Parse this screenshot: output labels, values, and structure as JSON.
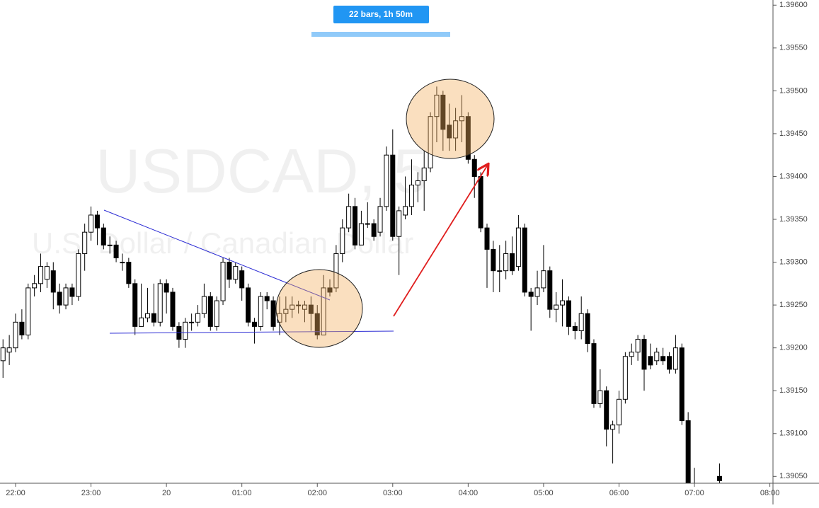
{
  "chart_data": {
    "type": "candlestick",
    "title": "USDCAD, 5",
    "subtitle": "U.S. Dollar / Canadian Dollar",
    "annotations": [
      "22 bars, 1h 50m"
    ],
    "x": [
      "21:50",
      "21:55",
      "22:00",
      "22:05",
      "22:10",
      "22:15",
      "22:20",
      "22:25",
      "22:30",
      "22:35",
      "22:40",
      "22:45",
      "22:50",
      "22:55",
      "23:00",
      "23:05",
      "23:10",
      "23:15",
      "23:20",
      "23:25",
      "23:30",
      "23:35",
      "23:40",
      "23:45",
      "23:50",
      "23:55",
      "00:00",
      "00:05",
      "00:10",
      "00:15",
      "00:20",
      "00:25",
      "00:30",
      "00:35",
      "00:40",
      "00:45",
      "00:50",
      "00:55",
      "01:00",
      "01:05",
      "01:10",
      "01:15",
      "01:20",
      "01:25",
      "01:30",
      "01:35",
      "01:40",
      "01:45",
      "01:50",
      "01:55",
      "02:00",
      "02:05",
      "02:10",
      "02:15",
      "02:20",
      "02:25",
      "02:30",
      "02:35",
      "02:40",
      "02:45",
      "02:50",
      "02:55",
      "03:00",
      "03:05",
      "03:10",
      "03:15",
      "03:20",
      "03:25",
      "03:30",
      "03:35",
      "03:40",
      "03:45",
      "03:50",
      "03:55",
      "04:00",
      "04:05",
      "04:10",
      "04:15",
      "04:20",
      "04:25",
      "04:30",
      "04:35",
      "04:40",
      "04:45",
      "04:50",
      "04:55",
      "05:00",
      "05:05",
      "05:10",
      "05:15",
      "05:20",
      "05:25",
      "05:30",
      "05:35",
      "05:40",
      "05:45",
      "05:50",
      "05:55",
      "06:00",
      "06:05",
      "06:10",
      "06:15",
      "06:20",
      "06:25",
      "06:30",
      "06:35",
      "06:40",
      "06:45",
      "06:50",
      "06:55",
      "07:00",
      "07:20"
    ],
    "open": [
      1.39185,
      1.39195,
      1.392,
      1.3923,
      1.39215,
      1.3927,
      1.39275,
      1.3928,
      1.3929,
      1.39265,
      1.3925,
      1.3927,
      1.3926,
      1.3931,
      1.39335,
      1.39355,
      1.3934,
      1.3932,
      1.3932,
      1.393,
      1.393,
      1.39275,
      1.39225,
      1.39235,
      1.3924,
      1.3923,
      1.39275,
      1.39265,
      1.39225,
      1.3921,
      1.3923,
      1.3923,
      1.3924,
      1.3926,
      1.39225,
      1.39255,
      1.393,
      1.3928,
      1.3929,
      1.3927,
      1.3923,
      1.39225,
      1.3926,
      1.39255,
      1.3923,
      1.3924,
      1.39245,
      1.3925,
      1.39245,
      1.3925,
      1.3924,
      1.39215,
      1.3927,
      1.3927,
      1.3931,
      1.3934,
      1.39365,
      1.3932,
      1.39345,
      1.39345,
      1.39335,
      1.39365,
      1.39425,
      1.3933,
      1.39355,
      1.39365,
      1.3939,
      1.39395,
      1.3941,
      1.3947,
      1.39495,
      1.3946,
      1.39445,
      1.39465,
      1.3947,
      1.3942,
      1.394,
      1.3934,
      1.39315,
      1.3929,
      1.3929,
      1.3931,
      1.39295,
      1.3934,
      1.39265,
      1.3926,
      1.3927,
      1.3929,
      1.39245,
      1.3925,
      1.39255,
      1.39225,
      1.3922,
      1.3924,
      1.39205,
      1.39135,
      1.3915,
      1.39105,
      1.3911,
      1.3914,
      1.3919,
      1.39195,
      1.3921,
      1.3919,
      1.39185,
      1.3919,
      1.3919,
      1.39175,
      1.392,
      1.39115,
      1.3904,
      1.3905
    ],
    "high": [
      1.3921,
      1.39215,
      1.3924,
      1.39245,
      1.39275,
      1.39285,
      1.3931,
      1.393,
      1.393,
      1.39275,
      1.39275,
      1.39275,
      1.39315,
      1.39345,
      1.39365,
      1.3936,
      1.39345,
      1.3933,
      1.39325,
      1.3931,
      1.39305,
      1.3928,
      1.39275,
      1.3927,
      1.39275,
      1.3928,
      1.3928,
      1.3927,
      1.3923,
      1.39235,
      1.3924,
      1.3925,
      1.39275,
      1.39265,
      1.3926,
      1.39305,
      1.39305,
      1.393,
      1.39295,
      1.39275,
      1.39235,
      1.39265,
      1.39265,
      1.3926,
      1.3926,
      1.3926,
      1.3926,
      1.39255,
      1.39255,
      1.3926,
      1.3925,
      1.39285,
      1.3928,
      1.3932,
      1.3935,
      1.3938,
      1.39375,
      1.3936,
      1.3937,
      1.3935,
      1.39375,
      1.39435,
      1.39455,
      1.39365,
      1.394,
      1.3942,
      1.39405,
      1.3943,
      1.39475,
      1.39505,
      1.395,
      1.39485,
      1.3948,
      1.39495,
      1.39475,
      1.39425,
      1.39405,
      1.39345,
      1.39325,
      1.3932,
      1.39325,
      1.3933,
      1.39355,
      1.39345,
      1.3927,
      1.3929,
      1.3932,
      1.39295,
      1.39265,
      1.3928,
      1.3926,
      1.3923,
      1.3926,
      1.39245,
      1.3921,
      1.39175,
      1.39155,
      1.39115,
      1.3915,
      1.39195,
      1.39205,
      1.39215,
      1.39215,
      1.39205,
      1.392,
      1.392,
      1.39195,
      1.39215,
      1.39205,
      1.39125,
      1.3906,
      1.39065
    ],
    "low": [
      1.39165,
      1.3918,
      1.39195,
      1.3921,
      1.3921,
      1.3926,
      1.39265,
      1.3927,
      1.39245,
      1.3924,
      1.39245,
      1.3925,
      1.39255,
      1.3929,
      1.39325,
      1.3932,
      1.39315,
      1.3931,
      1.393,
      1.3929,
      1.3927,
      1.39215,
      1.39225,
      1.3923,
      1.39225,
      1.39225,
      1.3924,
      1.3922,
      1.392,
      1.392,
      1.3922,
      1.39225,
      1.39235,
      1.3922,
      1.3922,
      1.3925,
      1.3927,
      1.39275,
      1.39255,
      1.39225,
      1.39205,
      1.3922,
      1.39245,
      1.3922,
      1.39215,
      1.3923,
      1.39235,
      1.3924,
      1.3923,
      1.3922,
      1.3921,
      1.39215,
      1.3926,
      1.39265,
      1.393,
      1.39335,
      1.39315,
      1.3932,
      1.3934,
      1.39325,
      1.3933,
      1.3936,
      1.39325,
      1.39285,
      1.3935,
      1.39355,
      1.3937,
      1.3936,
      1.39405,
      1.3944,
      1.3943,
      1.3943,
      1.3943,
      1.3944,
      1.39415,
      1.39375,
      1.39335,
      1.3927,
      1.39265,
      1.39265,
      1.3928,
      1.39285,
      1.3929,
      1.3926,
      1.3922,
      1.3925,
      1.39265,
      1.39235,
      1.3923,
      1.39225,
      1.39215,
      1.3921,
      1.3921,
      1.39195,
      1.3913,
      1.3913,
      1.39085,
      1.39065,
      1.391,
      1.39135,
      1.3918,
      1.39185,
      1.3915,
      1.39175,
      1.3918,
      1.3918,
      1.3917,
      1.3917,
      1.3911,
      1.3901,
      1.3902,
      1.3904
    ],
    "close": [
      1.392,
      1.392,
      1.3923,
      1.39215,
      1.3927,
      1.39275,
      1.39295,
      1.39295,
      1.39265,
      1.3925,
      1.3927,
      1.3926,
      1.3931,
      1.39335,
      1.39355,
      1.3934,
      1.3932,
      1.3932,
      1.39305,
      1.393,
      1.39275,
      1.39225,
      1.39235,
      1.3924,
      1.3923,
      1.39275,
      1.39265,
      1.39225,
      1.3921,
      1.3923,
      1.3923,
      1.3924,
      1.3926,
      1.39225,
      1.39255,
      1.393,
      1.3928,
      1.39295,
      1.3927,
      1.3923,
      1.39225,
      1.3926,
      1.39255,
      1.39225,
      1.3924,
      1.39245,
      1.3925,
      1.3925,
      1.3925,
      1.3924,
      1.39215,
      1.3927,
      1.39265,
      1.3931,
      1.3934,
      1.39365,
      1.3932,
      1.39345,
      1.39345,
      1.3933,
      1.39365,
      1.39425,
      1.3933,
      1.3936,
      1.39365,
      1.3939,
      1.39395,
      1.3941,
      1.3947,
      1.39495,
      1.39455,
      1.39445,
      1.39465,
      1.3947,
      1.3942,
      1.394,
      1.3934,
      1.39315,
      1.3929,
      1.3929,
      1.3931,
      1.3929,
      1.3934,
      1.39265,
      1.3926,
      1.3927,
      1.3929,
      1.39245,
      1.3925,
      1.39255,
      1.39225,
      1.3922,
      1.3924,
      1.39205,
      1.39135,
      1.3915,
      1.39105,
      1.3911,
      1.3914,
      1.3919,
      1.39195,
      1.3921,
      1.39175,
      1.3918,
      1.39195,
      1.39185,
      1.39175,
      1.392,
      1.39115,
      1.3902,
      1.39035,
      1.39045
    ],
    "up_color": "#ffffff",
    "down_color": "#000000",
    "ylim": [
      1.39042,
      1.39606
    ],
    "yticks": [
      {
        "value": 1.3905,
        "label": "1.39050"
      },
      {
        "value": 1.391,
        "label": "1.39100"
      },
      {
        "value": 1.3915,
        "label": "1.39150"
      },
      {
        "value": 1.392,
        "label": "1.39200"
      },
      {
        "value": 1.3925,
        "label": "1.39250"
      },
      {
        "value": 1.393,
        "label": "1.39300"
      },
      {
        "value": 1.3935,
        "label": "1.39350"
      },
      {
        "value": 1.394,
        "label": "1.39400"
      },
      {
        "value": 1.3945,
        "label": "1.39450"
      },
      {
        "value": 1.395,
        "label": "1.39500"
      },
      {
        "value": 1.3955,
        "label": "1.39550"
      },
      {
        "value": 1.396,
        "label": "1.39600"
      }
    ],
    "xticks": [
      "22:00",
      "23:00",
      {
        "value": "00:00",
        "label": "20"
      },
      "01:00",
      "02:00",
      "03:00",
      "04:00",
      "05:00",
      "06:00",
      "07:00",
      "08:00"
    ]
  }
}
